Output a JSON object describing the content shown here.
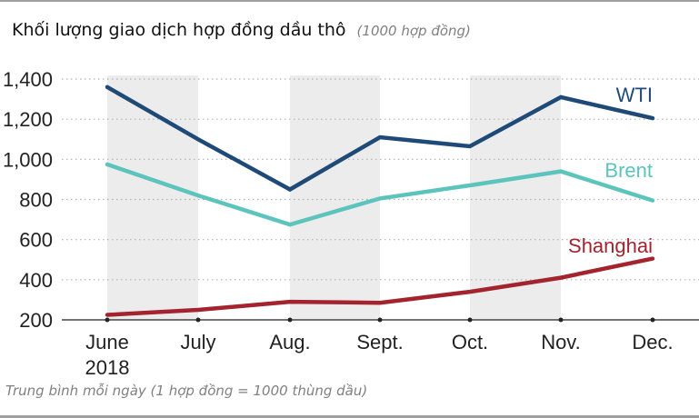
{
  "header": {
    "title": "Khối lượng giao dịch hợp đồng dầu thô",
    "unit": "(1000 hợp đồng)"
  },
  "footnote": "Trung bình mỗi ngày (1 hợp đồng = 1000 thùng dầu)",
  "colors": {
    "wti": "#1f4a78",
    "brent": "#5cc4bd",
    "shanghai": "#a3232f",
    "band": "#ececec",
    "grid": "#b0b0b0",
    "axis": "#222222"
  },
  "chart_data": {
    "type": "line",
    "title": "Khối lượng giao dịch hợp đồng dầu thô (1000 hợp đồng)",
    "xlabel": "",
    "ylabel": "",
    "categories": [
      "June\n2018",
      "July",
      "Aug.",
      "Sept.",
      "Oct.",
      "Nov.",
      "Dec."
    ],
    "x_tick_labels": [
      {
        "line1": "June",
        "line2": "2018"
      },
      {
        "line1": "July",
        "line2": ""
      },
      {
        "line1": "Aug.",
        "line2": ""
      },
      {
        "line1": "Sept.",
        "line2": ""
      },
      {
        "line1": "Oct.",
        "line2": ""
      },
      {
        "line1": "Nov.",
        "line2": ""
      },
      {
        "line1": "Dec.",
        "line2": ""
      }
    ],
    "y_ticks": [
      200,
      400,
      600,
      800,
      1000,
      1200,
      1400
    ],
    "y_tick_labels": [
      "200",
      "400",
      "600",
      "800",
      "1,000",
      "1,200",
      "1,400"
    ],
    "ylim": [
      200,
      1400
    ],
    "grid": "horizontal dotted",
    "shaded_bands": [
      "June-July",
      "Aug.-Sept.",
      "Oct.-Nov."
    ],
    "series": [
      {
        "name": "WTI",
        "color": "#1f4a78",
        "values": [
          1360,
          1100,
          850,
          1110,
          1065,
          1310,
          1205
        ]
      },
      {
        "name": "Brent",
        "color": "#5cc4bd",
        "values": [
          975,
          820,
          675,
          805,
          870,
          940,
          795
        ]
      },
      {
        "name": "Shanghai",
        "color": "#a3232f",
        "values": [
          225,
          250,
          290,
          285,
          340,
          410,
          505
        ]
      }
    ],
    "legend": "inline labels at right end of lines",
    "note": "Trung bình mỗi ngày (1 hợp đồng = 1000 thùng dầu)"
  }
}
